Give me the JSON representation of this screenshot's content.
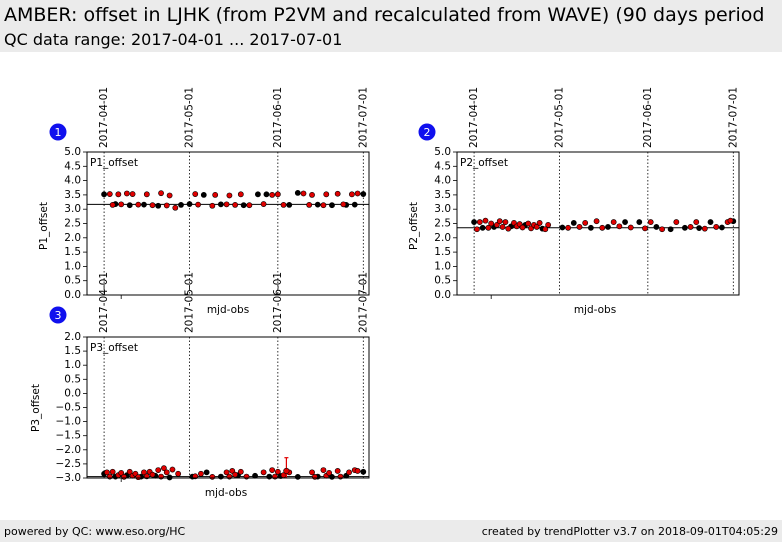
{
  "header": {
    "title": "AMBER: offset in LJHK (from P2VM and recalculated from WAVE) (90 days period",
    "subtitle": "QC data range: 2017-04-01 ... 2017-07-01"
  },
  "footer": {
    "left": "powered by QC: www.eso.org/HC",
    "right": "created by trendPlotter v3.7 on 2018-09-01T04:05:29"
  },
  "colors": {
    "black_points": "#000000",
    "red_points": "#e00000",
    "badge": "#1010ee"
  },
  "chart_data": [
    {
      "type": "scatter",
      "badge": "1",
      "panel_label": "P1_offset",
      "xlabel": "mjd-obs",
      "ylabel": "P1_offset",
      "date_ticks": [
        "2017-04-01",
        "2017-05-01",
        "2017-06-01",
        "2017-07-01"
      ],
      "xlim": [
        "2017-03-26",
        "2017-07-03"
      ],
      "ylim": [
        0.0,
        5.0
      ],
      "yticks": [
        "0.0",
        "0.5",
        "1.0",
        "1.5",
        "2.0",
        "2.5",
        "3.0",
        "3.5",
        "4.0",
        "4.5",
        "5.0"
      ],
      "ref_line": 3.17,
      "series": [
        {
          "color": "black",
          "x": [
            "2017-04-01",
            "2017-04-05",
            "2017-04-10",
            "2017-04-15",
            "2017-04-20",
            "2017-04-28",
            "2017-05-01",
            "2017-05-06",
            "2017-05-12",
            "2017-05-20",
            "2017-05-25",
            "2017-05-28",
            "2017-06-05",
            "2017-06-08",
            "2017-06-15",
            "2017-06-20",
            "2017-06-25",
            "2017-06-28",
            "2017-07-01"
          ],
          "y": [
            3.52,
            3.18,
            3.14,
            3.16,
            3.12,
            3.15,
            3.18,
            3.5,
            3.17,
            3.14,
            3.52,
            3.52,
            3.15,
            3.57,
            3.16,
            3.14,
            3.15,
            3.16,
            3.53
          ]
        },
        {
          "color": "red",
          "x": [
            "2017-04-03",
            "2017-04-04",
            "2017-04-06",
            "2017-04-07",
            "2017-04-09",
            "2017-04-11",
            "2017-04-13",
            "2017-04-16",
            "2017-04-18",
            "2017-04-21",
            "2017-04-23",
            "2017-04-24",
            "2017-04-26",
            "2017-05-03",
            "2017-05-04",
            "2017-05-09",
            "2017-05-10",
            "2017-05-14",
            "2017-05-15",
            "2017-05-17",
            "2017-05-19",
            "2017-05-22",
            "2017-05-27",
            "2017-05-30",
            "2017-06-01",
            "2017-06-03",
            "2017-06-10",
            "2017-06-12",
            "2017-06-13",
            "2017-06-17",
            "2017-06-18",
            "2017-06-22",
            "2017-06-24",
            "2017-06-27",
            "2017-06-29"
          ],
          "y": [
            3.53,
            3.15,
            3.52,
            3.17,
            3.55,
            3.53,
            3.16,
            3.52,
            3.14,
            3.56,
            3.13,
            3.48,
            3.05,
            3.53,
            3.16,
            3.12,
            3.5,
            3.17,
            3.48,
            3.15,
            3.52,
            3.14,
            3.18,
            3.5,
            3.52,
            3.15,
            3.55,
            3.15,
            3.5,
            3.14,
            3.52,
            3.54,
            3.17,
            3.52,
            3.55
          ]
        }
      ]
    },
    {
      "type": "scatter",
      "badge": "2",
      "panel_label": "P2_offset",
      "xlabel": "mjd-obs",
      "ylabel": "P2_offset",
      "date_ticks": [
        "2017-04-01",
        "2017-05-01",
        "2017-06-01",
        "2017-07-01"
      ],
      "xlim": [
        "2017-03-26",
        "2017-07-03"
      ],
      "ylim": [
        0.0,
        5.0
      ],
      "yticks": [
        "0.0",
        "0.5",
        "1.0",
        "1.5",
        "2.0",
        "2.5",
        "3.0",
        "3.5",
        "4.0",
        "4.5",
        "5.0"
      ],
      "ref_line": 2.35,
      "series": [
        {
          "color": "black",
          "x": [
            "2017-04-01",
            "2017-04-04",
            "2017-04-08",
            "2017-04-14",
            "2017-04-19",
            "2017-04-25",
            "2017-05-02",
            "2017-05-06",
            "2017-05-12",
            "2017-05-18",
            "2017-05-24",
            "2017-05-29",
            "2017-06-04",
            "2017-06-09",
            "2017-06-14",
            "2017-06-19",
            "2017-06-23",
            "2017-06-27",
            "2017-07-01"
          ],
          "y": [
            2.55,
            2.35,
            2.38,
            2.4,
            2.45,
            2.32,
            2.36,
            2.52,
            2.35,
            2.38,
            2.55,
            2.55,
            2.38,
            2.3,
            2.35,
            2.34,
            2.55,
            2.36,
            2.58
          ]
        },
        {
          "color": "red",
          "x": [
            "2017-04-02",
            "2017-04-03",
            "2017-04-05",
            "2017-04-06",
            "2017-04-07",
            "2017-04-09",
            "2017-04-10",
            "2017-04-11",
            "2017-04-12",
            "2017-04-13",
            "2017-04-15",
            "2017-04-16",
            "2017-04-17",
            "2017-04-18",
            "2017-04-20",
            "2017-04-21",
            "2017-04-22",
            "2017-04-23",
            "2017-04-24",
            "2017-04-26",
            "2017-04-27",
            "2017-05-04",
            "2017-05-08",
            "2017-05-10",
            "2017-05-14",
            "2017-05-16",
            "2017-05-20",
            "2017-05-22",
            "2017-05-26",
            "2017-05-31",
            "2017-06-02",
            "2017-06-06",
            "2017-06-11",
            "2017-06-16",
            "2017-06-18",
            "2017-06-21",
            "2017-06-25",
            "2017-06-29",
            "2017-06-30"
          ],
          "y": [
            2.3,
            2.55,
            2.6,
            2.35,
            2.5,
            2.45,
            2.58,
            2.38,
            2.55,
            2.32,
            2.52,
            2.4,
            2.48,
            2.36,
            2.5,
            2.33,
            2.45,
            2.38,
            2.52,
            2.3,
            2.45,
            2.35,
            2.38,
            2.52,
            2.58,
            2.35,
            2.55,
            2.4,
            2.36,
            2.33,
            2.55,
            2.3,
            2.55,
            2.38,
            2.55,
            2.32,
            2.38,
            2.55,
            2.6
          ]
        }
      ]
    },
    {
      "type": "scatter",
      "badge": "3",
      "panel_label": "P3_offset",
      "xlabel": "mjd-obs",
      "ylabel": "P3_offset",
      "date_ticks": [
        "2017-04-01",
        "2017-05-01",
        "2017-06-01",
        "2017-07-01"
      ],
      "xlim": [
        "2017-03-26",
        "2017-07-03"
      ],
      "ylim": [
        -3.0,
        2.0
      ],
      "yticks": [
        "−3.0",
        "−2.5",
        "−2.0",
        "−1.5",
        "−1.0",
        "−0.5",
        "0.0",
        "0.5",
        "1.0",
        "1.5",
        "2.0"
      ],
      "ref_line": -2.95,
      "error_bar": {
        "x": "2017-06-04",
        "y": -2.75,
        "upper": -2.28,
        "lower": -2.98
      },
      "series": [
        {
          "color": "black",
          "x": [
            "2017-04-01",
            "2017-04-05",
            "2017-04-09",
            "2017-04-14",
            "2017-04-19",
            "2017-04-24",
            "2017-05-02",
            "2017-05-07",
            "2017-05-12",
            "2017-05-18",
            "2017-05-24",
            "2017-05-29",
            "2017-06-02",
            "2017-06-08",
            "2017-06-15",
            "2017-06-20",
            "2017-06-25",
            "2017-07-01"
          ],
          "y": [
            -2.85,
            -2.95,
            -2.9,
            -2.95,
            -2.92,
            -2.98,
            -2.95,
            -2.8,
            -2.95,
            -2.9,
            -2.92,
            -2.95,
            -2.93,
            -2.96,
            -2.95,
            -2.96,
            -2.92,
            -2.78
          ]
        },
        {
          "color": "red",
          "x": [
            "2017-04-02",
            "2017-04-03",
            "2017-04-04",
            "2017-04-06",
            "2017-04-07",
            "2017-04-08",
            "2017-04-10",
            "2017-04-11",
            "2017-04-12",
            "2017-04-13",
            "2017-04-15",
            "2017-04-16",
            "2017-04-17",
            "2017-04-18",
            "2017-04-20",
            "2017-04-21",
            "2017-04-22",
            "2017-04-23",
            "2017-04-25",
            "2017-04-27",
            "2017-05-03",
            "2017-05-05",
            "2017-05-09",
            "2017-05-14",
            "2017-05-15",
            "2017-05-16",
            "2017-05-17",
            "2017-05-19",
            "2017-05-21",
            "2017-05-27",
            "2017-05-30",
            "2017-05-31",
            "2017-06-01",
            "2017-06-03",
            "2017-06-05",
            "2017-06-13",
            "2017-06-14",
            "2017-06-17",
            "2017-06-18",
            "2017-06-19",
            "2017-06-22",
            "2017-06-23",
            "2017-06-26",
            "2017-06-28",
            "2017-06-29"
          ],
          "y": [
            -2.8,
            -2.95,
            -2.78,
            -2.9,
            -2.82,
            -2.96,
            -2.78,
            -2.92,
            -2.85,
            -2.97,
            -2.8,
            -2.94,
            -2.78,
            -2.88,
            -2.72,
            -2.95,
            -2.65,
            -2.8,
            -2.7,
            -2.85,
            -2.94,
            -2.85,
            -2.96,
            -2.8,
            -2.95,
            -2.75,
            -2.88,
            -2.78,
            -2.95,
            -2.8,
            -2.72,
            -2.95,
            -2.78,
            -2.9,
            -2.8,
            -2.8,
            -2.96,
            -2.72,
            -2.92,
            -2.82,
            -2.75,
            -2.95,
            -2.8,
            -2.72,
            -2.75
          ]
        }
      ]
    }
  ]
}
